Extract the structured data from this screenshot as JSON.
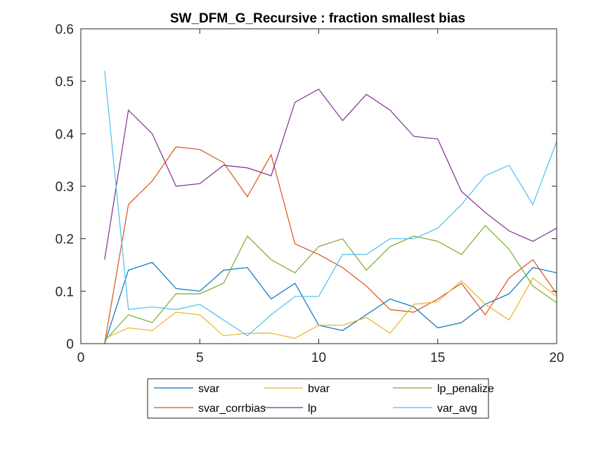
{
  "chart_data": {
    "type": "line",
    "title": "SW_DFM_G_Recursive : fraction smallest bias",
    "xlabel": "",
    "ylabel": "",
    "xlim": [
      0,
      20
    ],
    "ylim": [
      0,
      0.6
    ],
    "xticks": [
      0,
      5,
      10,
      15,
      20
    ],
    "yticks": [
      0,
      0.1,
      0.2,
      0.3,
      0.4,
      0.5,
      0.6
    ],
    "xtick_labels": [
      "0",
      "5",
      "10",
      "15",
      "20"
    ],
    "ytick_labels": [
      "0",
      "0.1",
      "0.2",
      "0.3",
      "0.4",
      "0.5",
      "0.6"
    ],
    "grid": false,
    "legend_position": "bottom-outside",
    "legend_columns": 3,
    "x": [
      1,
      2,
      3,
      4,
      5,
      6,
      7,
      8,
      9,
      10,
      11,
      12,
      13,
      14,
      15,
      16,
      17,
      18,
      19,
      20
    ],
    "series": [
      {
        "name": "svar",
        "color": "#0072BD",
        "values": [
          0.0,
          0.14,
          0.155,
          0.105,
          0.1,
          0.14,
          0.145,
          0.085,
          0.115,
          0.035,
          0.025,
          0.055,
          0.085,
          0.07,
          0.03,
          0.04,
          0.075,
          0.095,
          0.145,
          0.135
        ]
      },
      {
        "name": "svar_corrbias",
        "color": "#D95319",
        "values": [
          0.0,
          0.265,
          0.31,
          0.375,
          0.37,
          0.345,
          0.28,
          0.36,
          0.19,
          0.17,
          0.145,
          0.11,
          0.065,
          0.06,
          0.085,
          0.115,
          0.055,
          0.125,
          0.16,
          0.095
        ]
      },
      {
        "name": "bvar",
        "color": "#EDB120",
        "values": [
          0.01,
          0.03,
          0.025,
          0.06,
          0.055,
          0.015,
          0.02,
          0.02,
          0.01,
          0.035,
          0.035,
          0.05,
          0.02,
          0.075,
          0.08,
          0.12,
          0.075,
          0.045,
          0.125,
          0.09
        ]
      },
      {
        "name": "lp",
        "color": "#7E2F8E",
        "values": [
          0.16,
          0.445,
          0.4,
          0.3,
          0.305,
          0.34,
          0.335,
          0.32,
          0.46,
          0.485,
          0.425,
          0.475,
          0.445,
          0.395,
          0.39,
          0.29,
          0.25,
          0.215,
          0.195,
          0.22
        ]
      },
      {
        "name": "lp_penalize",
        "color": "#77AC30",
        "values": [
          0.005,
          0.055,
          0.04,
          0.095,
          0.095,
          0.115,
          0.205,
          0.16,
          0.135,
          0.185,
          0.2,
          0.14,
          0.185,
          0.205,
          0.195,
          0.17,
          0.225,
          0.18,
          0.11,
          0.078
        ]
      },
      {
        "name": "var_avg",
        "color": "#4DBEEE",
        "values": [
          0.52,
          0.065,
          0.07,
          0.065,
          0.075,
          0.045,
          0.015,
          0.055,
          0.09,
          0.09,
          0.17,
          0.17,
          0.2,
          0.2,
          0.22,
          0.265,
          0.32,
          0.34,
          0.265,
          0.385
        ]
      }
    ]
  },
  "legend_order": [
    "svar",
    "bvar",
    "lp_penalize",
    "svar_corrbias",
    "lp",
    "var_avg"
  ]
}
